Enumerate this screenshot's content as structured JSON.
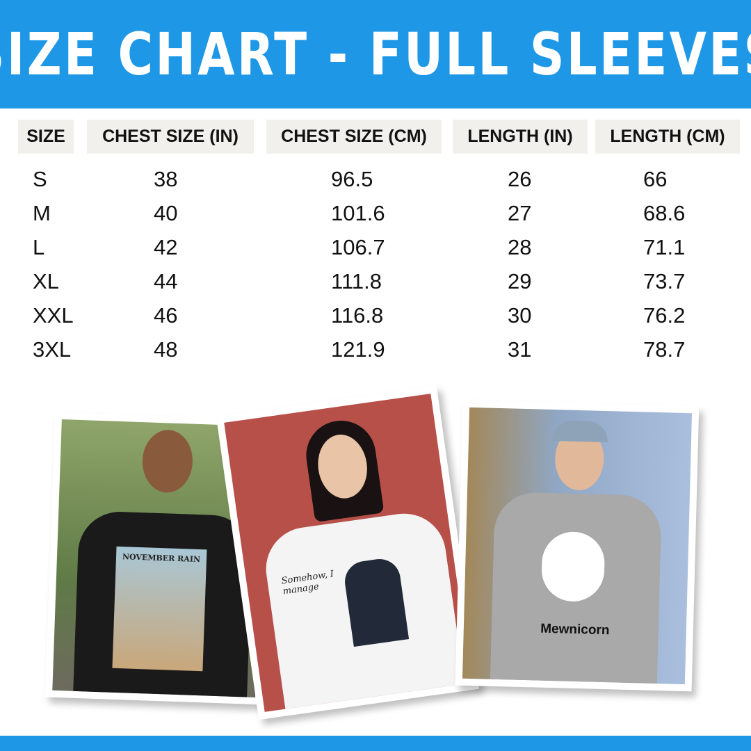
{
  "title": "SIZE CHART - FULL SLEEVES",
  "colors": {
    "accent": "#1e98e6",
    "header_cell": "#f1f0ec"
  },
  "table": {
    "headers": [
      "SIZE",
      "CHEST SIZE (IN)",
      "CHEST SIZE (CM)",
      "LENGTH (IN)",
      "LENGTH (CM)"
    ],
    "rows": [
      [
        "S",
        "38",
        "96.5",
        "26",
        "66"
      ],
      [
        "M",
        "40",
        "101.6",
        "27",
        "68.6"
      ],
      [
        "L",
        "42",
        "106.7",
        "28",
        "71.1"
      ],
      [
        "XL",
        "44",
        "111.8",
        "29",
        "73.7"
      ],
      [
        "XXL",
        "46",
        "116.8",
        "30",
        "76.2"
      ],
      [
        "3XL",
        "48",
        "121.9",
        "31",
        "78.7"
      ]
    ]
  },
  "photos": [
    {
      "shirt_text": "NOVEMBER RAIN",
      "shirt_color": "black"
    },
    {
      "shirt_text": "Somehow, I manage",
      "shirt_color": "white"
    },
    {
      "shirt_text": "Mewnicorn",
      "shirt_color": "grey"
    }
  ]
}
